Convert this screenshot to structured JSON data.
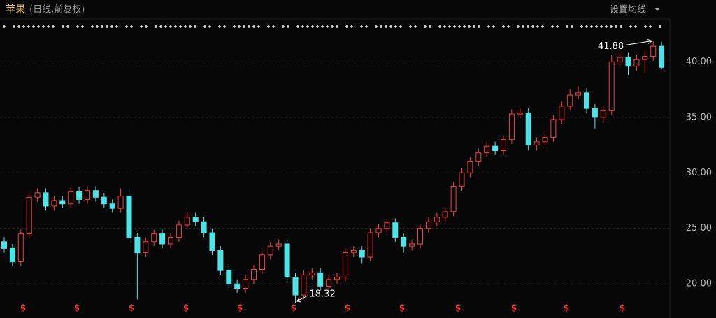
{
  "header": {
    "title": "苹果",
    "subtitle": "(日线,前复权)",
    "ma_button": "设置均线"
  },
  "chart_data": {
    "type": "candlestick",
    "up_color": "#ff3b3b",
    "down_color": "#4fe3e8",
    "grid": true,
    "ylim": [
      18.5,
      43.8
    ],
    "yticks": [
      {
        "value": 20,
        "label": "20.00"
      },
      {
        "value": 25,
        "label": "25.00"
      },
      {
        "value": 30,
        "label": "30.00"
      },
      {
        "value": 35,
        "label": "35.00"
      },
      {
        "value": 40,
        "label": "40.00"
      }
    ],
    "max_label": "41.88",
    "min_label": "18.32",
    "dividend_marker": "$",
    "candles": [
      [
        23.8,
        24.2,
        22.8,
        23.2
      ],
      [
        23.2,
        23.6,
        21.6,
        22.0
      ],
      [
        22.0,
        24.9,
        21.6,
        24.5
      ],
      [
        24.5,
        28.2,
        24.1,
        27.8
      ],
      [
        27.8,
        28.6,
        27.4,
        28.2
      ],
      [
        28.2,
        28.6,
        26.6,
        27.0
      ],
      [
        27.0,
        27.9,
        26.6,
        27.5
      ],
      [
        27.5,
        27.9,
        26.8,
        27.2
      ],
      [
        27.2,
        28.7,
        26.8,
        28.3
      ],
      [
        28.3,
        28.7,
        27.2,
        27.6
      ],
      [
        27.6,
        28.8,
        27.2,
        28.4
      ],
      [
        28.4,
        28.8,
        27.4,
        27.8
      ],
      [
        27.8,
        28.2,
        26.8,
        27.2
      ],
      [
        27.2,
        27.6,
        26.4,
        26.8
      ],
      [
        26.8,
        28.6,
        26.4,
        27.9
      ],
      [
        27.9,
        28.3,
        23.8,
        24.2
      ],
      [
        24.2,
        24.6,
        18.6,
        22.8
      ],
      [
        22.8,
        24.2,
        22.4,
        23.8
      ],
      [
        23.8,
        24.9,
        23.4,
        24.5
      ],
      [
        24.5,
        24.9,
        23.2,
        23.6
      ],
      [
        23.6,
        24.6,
        23.2,
        24.2
      ],
      [
        24.2,
        25.7,
        23.8,
        25.3
      ],
      [
        25.3,
        26.5,
        24.9,
        26.0
      ],
      [
        26.0,
        26.4,
        25.2,
        25.6
      ],
      [
        25.6,
        26.0,
        24.2,
        24.6
      ],
      [
        24.6,
        25.0,
        22.6,
        23.0
      ],
      [
        23.0,
        23.4,
        20.8,
        21.2
      ],
      [
        21.2,
        21.6,
        19.6,
        20.0
      ],
      [
        20.0,
        20.4,
        19.2,
        19.6
      ],
      [
        19.6,
        20.8,
        19.2,
        20.4
      ],
      [
        20.4,
        21.7,
        20.0,
        21.3
      ],
      [
        21.3,
        23.0,
        20.9,
        22.6
      ],
      [
        22.6,
        23.8,
        22.2,
        23.4
      ],
      [
        23.4,
        24.0,
        23.0,
        23.6
      ],
      [
        23.6,
        24.0,
        20.2,
        20.6
      ],
      [
        20.6,
        21.0,
        18.32,
        19.0
      ],
      [
        19.0,
        21.2,
        18.6,
        20.8
      ],
      [
        20.8,
        21.4,
        20.4,
        21.0
      ],
      [
        21.0,
        21.4,
        19.4,
        19.8
      ],
      [
        19.8,
        20.8,
        19.4,
        20.4
      ],
      [
        20.4,
        21.0,
        20.0,
        20.6
      ],
      [
        20.6,
        23.2,
        20.2,
        22.8
      ],
      [
        22.8,
        23.4,
        22.4,
        23.0
      ],
      [
        23.0,
        23.4,
        21.8,
        22.4
      ],
      [
        22.4,
        25.0,
        22.0,
        24.6
      ],
      [
        24.6,
        25.4,
        24.2,
        25.0
      ],
      [
        25.0,
        25.9,
        24.6,
        25.5
      ],
      [
        25.5,
        25.9,
        23.8,
        24.2
      ],
      [
        24.2,
        24.6,
        22.8,
        23.4
      ],
      [
        23.4,
        24.0,
        23.0,
        23.6
      ],
      [
        23.6,
        25.4,
        23.2,
        25.0
      ],
      [
        25.0,
        26.0,
        24.6,
        25.6
      ],
      [
        25.6,
        26.4,
        25.2,
        26.0
      ],
      [
        26.0,
        26.9,
        25.6,
        26.5
      ],
      [
        26.5,
        29.2,
        26.1,
        28.8
      ],
      [
        28.8,
        30.4,
        28.4,
        30.0
      ],
      [
        30.0,
        31.4,
        29.6,
        31.0
      ],
      [
        31.0,
        32.2,
        30.6,
        31.8
      ],
      [
        31.8,
        32.8,
        31.4,
        32.4
      ],
      [
        32.4,
        32.8,
        31.6,
        32.0
      ],
      [
        32.0,
        33.4,
        31.6,
        33.0
      ],
      [
        33.0,
        35.7,
        32.6,
        35.3
      ],
      [
        35.3,
        35.8,
        34.9,
        35.4
      ],
      [
        35.4,
        35.8,
        32.0,
        32.5
      ],
      [
        32.5,
        33.2,
        32.0,
        32.8
      ],
      [
        32.8,
        33.6,
        32.4,
        33.2
      ],
      [
        33.2,
        35.2,
        32.8,
        34.8
      ],
      [
        34.8,
        36.4,
        34.4,
        36.0
      ],
      [
        36.0,
        37.5,
        35.6,
        37.0
      ],
      [
        37.0,
        37.8,
        36.6,
        37.2
      ],
      [
        37.2,
        37.6,
        35.4,
        35.8
      ],
      [
        35.8,
        36.2,
        34.0,
        35.0
      ],
      [
        35.0,
        36.0,
        34.6,
        35.6
      ],
      [
        35.6,
        40.6,
        35.2,
        40.0
      ],
      [
        40.0,
        40.9,
        39.6,
        40.4
      ],
      [
        40.4,
        40.8,
        38.8,
        39.6
      ],
      [
        39.6,
        40.6,
        39.2,
        40.2
      ],
      [
        40.2,
        41.0,
        39.0,
        40.5
      ],
      [
        40.5,
        41.88,
        40.1,
        41.4
      ],
      [
        41.4,
        41.8,
        39.3,
        39.5
      ]
    ]
  }
}
